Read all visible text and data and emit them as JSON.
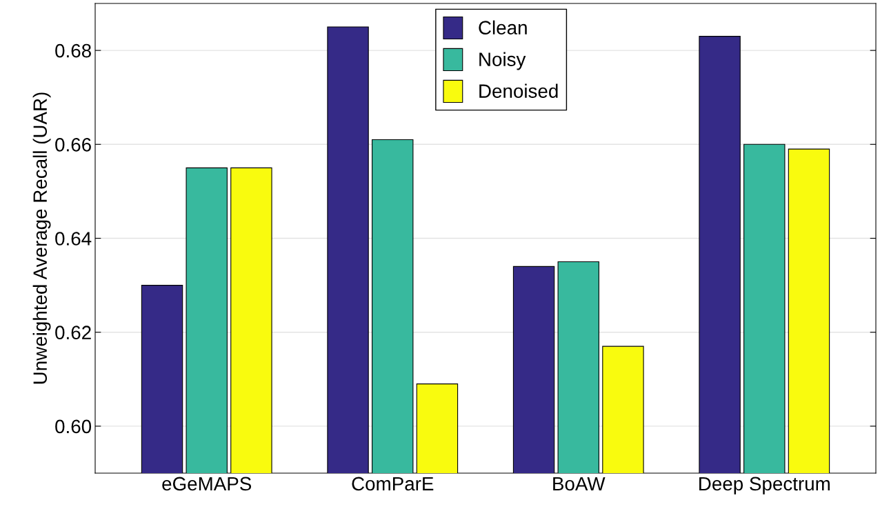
{
  "chart_data": {
    "type": "bar",
    "ylabel": "Unweighted Average Recall (UAR)",
    "categories": [
      "eGeMAPS",
      "ComParE",
      "BoAW",
      "Deep Spectrum"
    ],
    "series": [
      {
        "name": "Clean",
        "color": "#352a87",
        "values": [
          0.63,
          0.685,
          0.634,
          0.683
        ]
      },
      {
        "name": "Noisy",
        "color": "#38b99e",
        "values": [
          0.655,
          0.661,
          0.635,
          0.66
        ]
      },
      {
        "name": "Denoised",
        "color": "#f9fb0e",
        "values": [
          0.655,
          0.609,
          0.617,
          0.659
        ]
      }
    ],
    "ylim": [
      0.59,
      0.69
    ],
    "yticks": [
      {
        "value": 0.6,
        "label": "0.60"
      },
      {
        "value": 0.62,
        "label": "0.62"
      },
      {
        "value": 0.64,
        "label": "0.64"
      },
      {
        "value": 0.66,
        "label": "0.66"
      },
      {
        "value": 0.68,
        "label": "0.68"
      }
    ],
    "grid": "y",
    "legend": "top"
  }
}
